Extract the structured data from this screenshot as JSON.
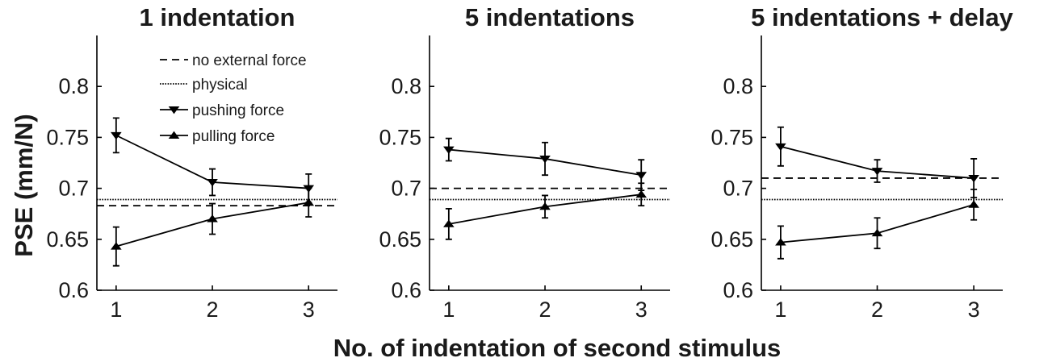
{
  "figure": {
    "ylabel": "PSE (mm/N)",
    "xlabel": "No. of indentation of second stimulus"
  },
  "legend": {
    "items": [
      {
        "label": "no external force",
        "style": "dashed"
      },
      {
        "label": "physical",
        "style": "dotted"
      },
      {
        "label": "pushing force",
        "style": "triangle-down"
      },
      {
        "label": "pulling force",
        "style": "triangle-up"
      }
    ]
  },
  "chart_data": [
    {
      "type": "line",
      "title": "1 indentation",
      "x": [
        1,
        2,
        3
      ],
      "xticks": [
        "1",
        "2",
        "3"
      ],
      "xlim": [
        0.8,
        3.3
      ],
      "ylim": [
        0.6,
        0.85
      ],
      "yticks": [
        "0.6",
        "0.65",
        "0.7",
        "0.75",
        "0.8"
      ],
      "series": [
        {
          "name": "pushing force",
          "marker": "triangle-down",
          "values": [
            0.752,
            0.706,
            0.7
          ],
          "errors": [
            0.017,
            0.013,
            0.014
          ]
        },
        {
          "name": "pulling force",
          "marker": "triangle-up",
          "values": [
            0.643,
            0.67,
            0.686
          ],
          "errors": [
            0.019,
            0.015,
            0.014
          ]
        }
      ],
      "reference_lines": [
        {
          "name": "no external force",
          "style": "dashed",
          "y": 0.683
        },
        {
          "name": "physical",
          "style": "dotted",
          "y": 0.689
        }
      ]
    },
    {
      "type": "line",
      "title": "5 indentations",
      "x": [
        1,
        2,
        3
      ],
      "xticks": [
        "1",
        "2",
        "3"
      ],
      "xlim": [
        0.8,
        3.3
      ],
      "ylim": [
        0.6,
        0.85
      ],
      "yticks": [
        "0.6",
        "0.65",
        "0.7",
        "0.75",
        "0.8"
      ],
      "series": [
        {
          "name": "pushing force",
          "marker": "triangle-down",
          "values": [
            0.738,
            0.729,
            0.713
          ],
          "errors": [
            0.011,
            0.016,
            0.015
          ]
        },
        {
          "name": "pulling force",
          "marker": "triangle-up",
          "values": [
            0.665,
            0.682,
            0.694
          ],
          "errors": [
            0.015,
            0.011,
            0.011
          ]
        }
      ],
      "reference_lines": [
        {
          "name": "no external force",
          "style": "dashed",
          "y": 0.7
        },
        {
          "name": "physical",
          "style": "dotted",
          "y": 0.689
        }
      ]
    },
    {
      "type": "line",
      "title": "5 indentations + delay",
      "x": [
        1,
        2,
        3
      ],
      "xticks": [
        "1",
        "2",
        "3"
      ],
      "xlim": [
        0.8,
        3.3
      ],
      "ylim": [
        0.6,
        0.85
      ],
      "yticks": [
        "0.6",
        "0.65",
        "0.7",
        "0.75",
        "0.8"
      ],
      "series": [
        {
          "name": "pushing force",
          "marker": "triangle-down",
          "values": [
            0.741,
            0.717,
            0.71
          ],
          "errors": [
            0.019,
            0.011,
            0.019
          ]
        },
        {
          "name": "pulling force",
          "marker": "triangle-up",
          "values": [
            0.647,
            0.656,
            0.684
          ],
          "errors": [
            0.016,
            0.015,
            0.015
          ]
        }
      ],
      "reference_lines": [
        {
          "name": "no external force",
          "style": "dashed",
          "y": 0.71
        },
        {
          "name": "physical",
          "style": "dotted",
          "y": 0.689
        }
      ]
    }
  ]
}
